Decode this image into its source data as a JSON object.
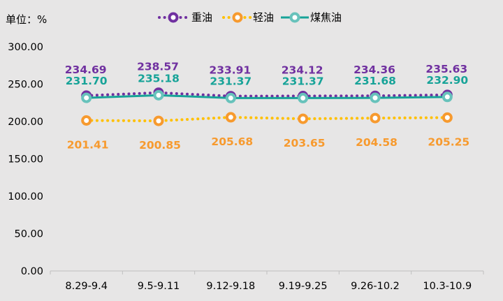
{
  "unit_label": "单位：%",
  "colors": {
    "heavy": "#7030a0",
    "light": "#f79a2e",
    "light_line": "#ffc000",
    "jet": "#17a398",
    "jet_marker": "#67c2bb",
    "axis": "#bfbfbf",
    "background": "#e7e6e6"
  },
  "chart_data": {
    "type": "line",
    "categories": [
      "8.29-9.4",
      "9.5-9.11",
      "9.12-9.18",
      "9.19-9.25",
      "9.26-10.2",
      "10.3-10.9"
    ],
    "ylim": [
      0,
      300
    ],
    "yticks": [
      "0.00",
      "50.00",
      "100.00",
      "150.00",
      "200.00",
      "250.00",
      "300.00"
    ],
    "ytick_values": [
      0,
      50,
      100,
      150,
      200,
      250,
      300
    ],
    "grid": false,
    "legend_position": "top",
    "series": [
      {
        "key": "heavy",
        "name": "重油",
        "values": [
          234.69,
          238.57,
          233.91,
          234.12,
          234.36,
          235.63
        ],
        "labels": [
          "234.69",
          "238.57",
          "233.91",
          "234.12",
          "234.36",
          "235.63"
        ]
      },
      {
        "key": "light",
        "name": "轻油",
        "values": [
          201.41,
          200.85,
          205.68,
          203.65,
          204.58,
          205.25
        ],
        "labels": [
          "201.41",
          "200.85",
          "205.68",
          "203.65",
          "204.58",
          "205.25"
        ]
      },
      {
        "key": "jet",
        "name": "煤焦油",
        "values": [
          231.7,
          235.18,
          231.37,
          231.37,
          231.68,
          232.9
        ],
        "labels": [
          "231.70",
          "235.18",
          "231.37",
          "231.37",
          "231.68",
          "232.90"
        ]
      }
    ]
  }
}
